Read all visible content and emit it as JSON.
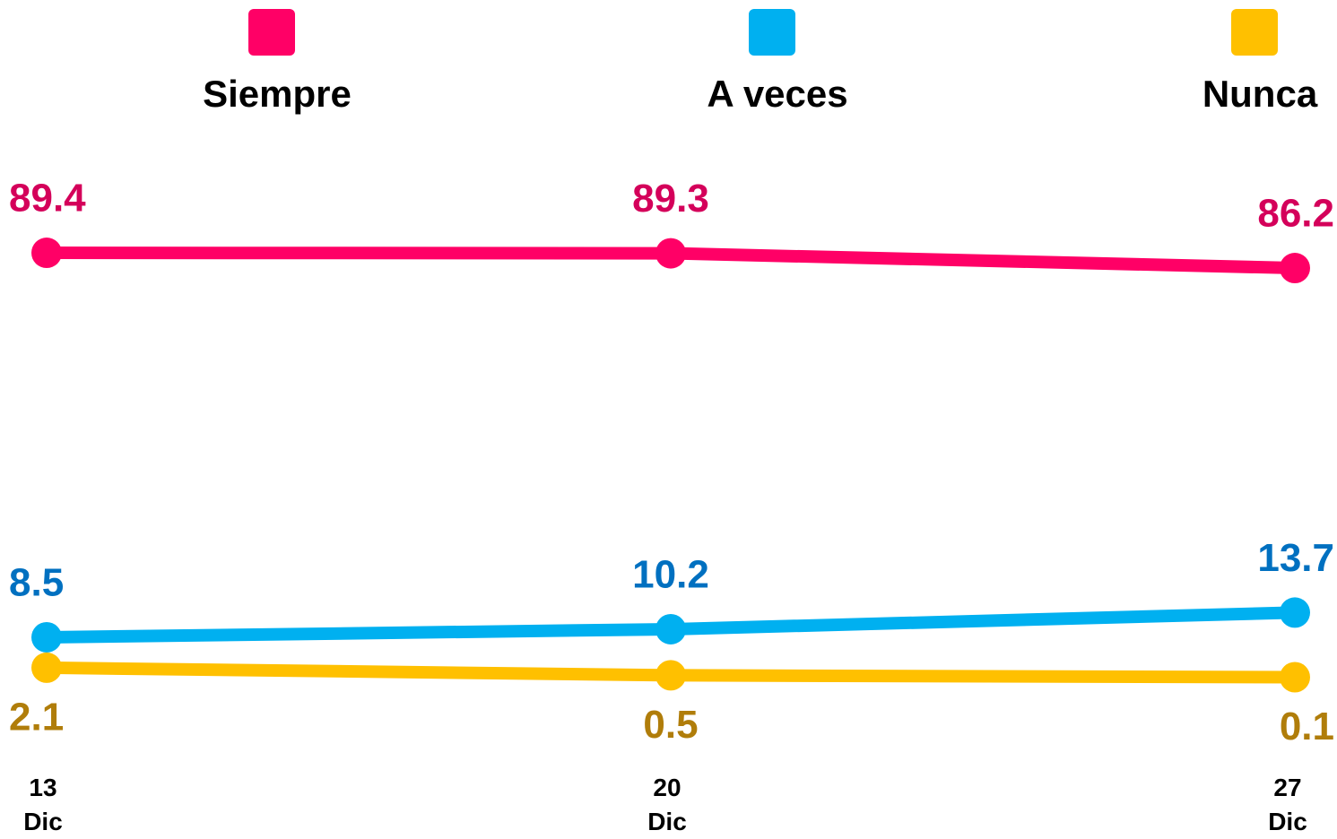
{
  "chart_data": {
    "type": "line",
    "categories": [
      "13 Dic",
      "20 Dic",
      "27 Dic"
    ],
    "series": [
      {
        "name": "Siempre",
        "color": "#ff0066",
        "label_color": "#d4005a",
        "values": [
          89.4,
          89.3,
          86.2
        ]
      },
      {
        "name": "A veces",
        "color": "#00b0f0",
        "label_color": "#0070c0",
        "values": [
          8.5,
          10.2,
          13.7
        ]
      },
      {
        "name": "Nunca",
        "color": "#ffc000",
        "label_color": "#b07d0a",
        "values": [
          2.1,
          0.5,
          0.1
        ]
      }
    ],
    "ylim": [
      -33,
      142.6
    ]
  }
}
